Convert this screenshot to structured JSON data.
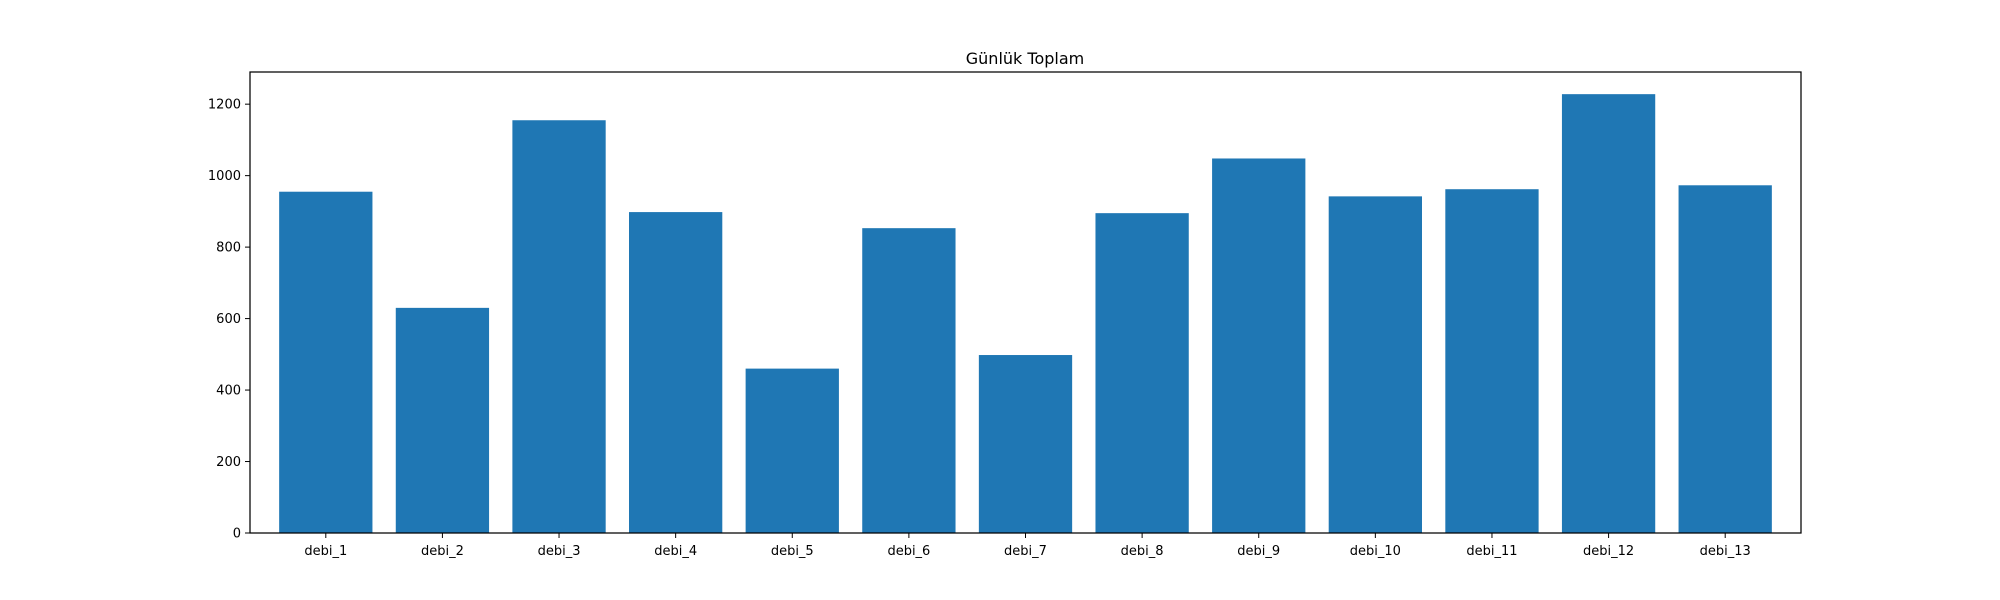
{
  "chart_data": {
    "type": "bar",
    "title": "Günlük Toplam",
    "xlabel": "",
    "ylabel": "",
    "categories": [
      "debi_1",
      "debi_2",
      "debi_3",
      "debi_4",
      "debi_5",
      "debi_6",
      "debi_7",
      "debi_8",
      "debi_9",
      "debi_10",
      "debi_11",
      "debi_12",
      "debi_13"
    ],
    "values": [
      955,
      630,
      1155,
      898,
      460,
      853,
      498,
      895,
      1048,
      942,
      962,
      1228,
      973
    ],
    "ylim": [
      0,
      1290
    ],
    "yticks": [
      0,
      200,
      400,
      600,
      800,
      1000,
      1200
    ],
    "ytick_labels": [
      "0",
      "200",
      "400",
      "600",
      "800",
      "1000",
      "1200"
    ],
    "grid": false,
    "legend": "none",
    "bar_color": "#1f77b4"
  }
}
